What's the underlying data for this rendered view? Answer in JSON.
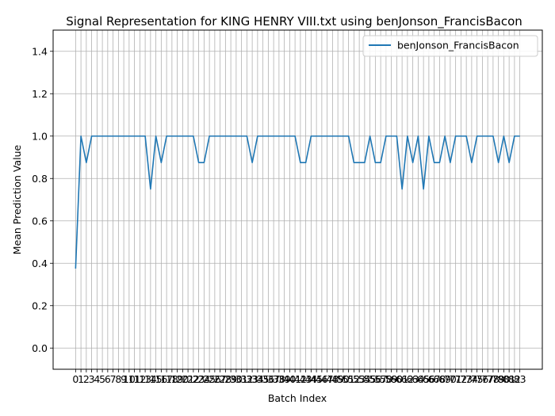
{
  "chart_data": {
    "type": "line",
    "title": "Signal Representation for KING HENRY VIII.txt using benJonson_FrancisBacon",
    "xlabel": "Batch Index",
    "ylabel": "Mean Prediction Value",
    "ylim": [
      -0.1,
      1.5
    ],
    "xlim": [
      -4.2,
      87.2
    ],
    "yticks": [
      0.0,
      0.2,
      0.4,
      0.6,
      0.8,
      1.0,
      1.2,
      1.4
    ],
    "ytick_labels": [
      "0.0",
      "0.2",
      "0.4",
      "0.6",
      "0.8",
      "1.0",
      "1.2",
      "1.4"
    ],
    "grid": true,
    "legend_placement": "top-right",
    "series": [
      {
        "name": "benJonson_FrancisBacon",
        "color": "#1f77b4",
        "x": [
          0,
          1,
          2,
          3,
          4,
          5,
          6,
          7,
          8,
          9,
          10,
          11,
          12,
          13,
          14,
          15,
          16,
          17,
          18,
          19,
          20,
          21,
          22,
          23,
          24,
          25,
          26,
          27,
          28,
          29,
          30,
          31,
          32,
          33,
          34,
          35,
          36,
          37,
          38,
          39,
          40,
          41,
          42,
          43,
          44,
          45,
          46,
          47,
          48,
          49,
          50,
          51,
          52,
          53,
          54,
          55,
          56,
          57,
          58,
          59,
          60,
          61,
          62,
          63,
          64,
          65,
          66,
          67,
          68,
          69,
          70,
          71,
          72,
          73,
          74,
          75,
          76,
          77,
          78,
          79,
          80,
          81,
          82,
          83
        ],
        "values": [
          0.375,
          1.0,
          0.875,
          1.0,
          1.0,
          1.0,
          1.0,
          1.0,
          1.0,
          1.0,
          1.0,
          1.0,
          1.0,
          1.0,
          0.75,
          1.0,
          0.875,
          1.0,
          1.0,
          1.0,
          1.0,
          1.0,
          1.0,
          0.875,
          0.875,
          1.0,
          1.0,
          1.0,
          1.0,
          1.0,
          1.0,
          1.0,
          1.0,
          0.875,
          1.0,
          1.0,
          1.0,
          1.0,
          1.0,
          1.0,
          1.0,
          1.0,
          0.875,
          0.875,
          1.0,
          1.0,
          1.0,
          1.0,
          1.0,
          1.0,
          1.0,
          1.0,
          0.875,
          0.875,
          0.875,
          1.0,
          0.875,
          0.875,
          1.0,
          1.0,
          1.0,
          0.75,
          1.0,
          0.875,
          1.0,
          0.75,
          1.0,
          0.875,
          0.875,
          1.0,
          0.875,
          1.0,
          1.0,
          1.0,
          0.875,
          1.0,
          1.0,
          1.0,
          1.0,
          0.875,
          1.0,
          0.875,
          1.0,
          1.0
        ]
      }
    ],
    "xtick_labels": [
      "0",
      "1",
      "2",
      "3",
      "4",
      "5",
      "6",
      "7",
      "8",
      "9",
      "10",
      "11",
      "12",
      "13",
      "14",
      "15",
      "16",
      "17",
      "18",
      "19",
      "20",
      "21",
      "22",
      "23",
      "24",
      "25",
      "26",
      "27",
      "28",
      "29",
      "30",
      "31",
      "32",
      "33",
      "34",
      "35",
      "36",
      "37",
      "38",
      "39",
      "40",
      "41",
      "42",
      "43",
      "44",
      "45",
      "46",
      "47",
      "48",
      "49",
      "50",
      "51",
      "52",
      "53",
      "54",
      "55",
      "56",
      "57",
      "58",
      "59",
      "60",
      "61",
      "62",
      "63",
      "64",
      "65",
      "66",
      "67",
      "68",
      "69",
      "70",
      "71",
      "72",
      "73",
      "74",
      "75",
      "76",
      "77",
      "78",
      "79",
      "80",
      "81",
      "82",
      "83"
    ]
  }
}
